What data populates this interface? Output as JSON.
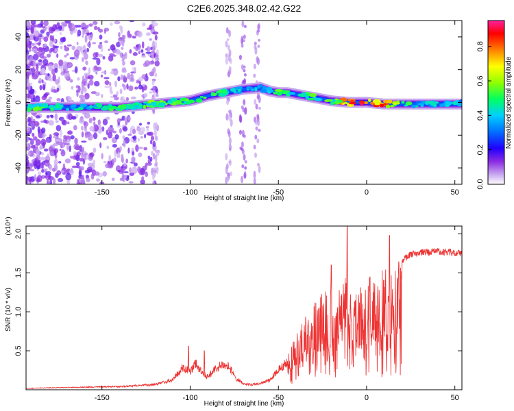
{
  "title": "C2E6.2025.348.02.42.G22",
  "chart_data": [
    {
      "type": "heatmap",
      "xlabel": "Height of straight line (km)",
      "ylabel": "Frequency (Hz)",
      "xlim": [
        -193,
        54
      ],
      "ylim": [
        -50,
        50
      ],
      "xticks": [
        -150,
        -100,
        -50,
        0,
        50
      ],
      "yticks": [
        -40,
        -20,
        0,
        20,
        40
      ],
      "colorbar": {
        "label": "Normalized spectral amplitude",
        "range": [
          0.0,
          0.95
        ],
        "ticks": [
          0.0,
          0.2,
          0.4,
          0.6,
          0.8
        ],
        "colormap": [
          "#ffffff",
          "#c8a8f0",
          "#8a2be2",
          "#0000ff",
          "#00bfff",
          "#00ff00",
          "#ffff00",
          "#ff0000",
          "#ff00ff"
        ]
      },
      "ridge": {
        "x": [
          -193,
          -180,
          -160,
          -140,
          -120,
          -100,
          -90,
          -80,
          -70,
          -60,
          -55,
          -50,
          -45,
          -40,
          -30,
          -20,
          -10,
          0,
          10,
          20,
          30,
          40,
          54
        ],
        "y": [
          -3,
          -3,
          -3,
          -3,
          -1,
          1,
          4,
          6,
          8,
          9,
          7,
          6,
          6,
          5,
          3,
          1,
          0,
          0,
          -1,
          -1,
          -1,
          -1,
          -1
        ],
        "amplitude": [
          0.6,
          0.55,
          0.5,
          0.55,
          0.6,
          0.6,
          0.65,
          0.5,
          0.45,
          0.45,
          0.5,
          0.6,
          0.6,
          0.55,
          0.6,
          0.6,
          0.9,
          0.95,
          0.9,
          0.6,
          0.45,
          0.45,
          0.45
        ]
      }
    },
    {
      "type": "line",
      "xlabel": "Height of straight line (km)",
      "ylabel": "SNR (10 * v/v)",
      "yscale_label": "(x10⁴)",
      "xlim": [
        -193,
        54
      ],
      "ylim": [
        0,
        2.1
      ],
      "xticks": [
        -150,
        -100,
        -50,
        0,
        50
      ],
      "yticks": [
        0.5,
        1.0,
        1.5,
        2.0
      ],
      "series": [
        {
          "color": "#ee3333",
          "envelope_x": [
            -193,
            -180,
            -160,
            -140,
            -120,
            -110,
            -104,
            -100,
            -97,
            -93,
            -90,
            -86,
            -82,
            -78,
            -74,
            -70,
            -65,
            -60,
            -55,
            -50,
            -45,
            -40,
            -35,
            -30,
            -25,
            -20,
            -15,
            -12,
            -10,
            -8,
            -5,
            0,
            5,
            10,
            12,
            15,
            20,
            25,
            30,
            40,
            54
          ],
          "envelope_y": [
            0.02,
            0.03,
            0.04,
            0.05,
            0.08,
            0.15,
            0.35,
            0.28,
            0.42,
            0.25,
            0.2,
            0.32,
            0.38,
            0.36,
            0.18,
            0.1,
            0.08,
            0.1,
            0.15,
            0.3,
            0.45,
            0.7,
            0.95,
            1.1,
            1.25,
            1.3,
            1.35,
            1.5,
            1.2,
            1.3,
            1.35,
            1.45,
            1.5,
            1.55,
            1.6,
            1.6,
            1.7,
            1.78,
            1.8,
            1.82,
            1.8
          ],
          "spikes": [
            {
              "x": -101,
              "y": 0.56
            },
            {
              "x": -92,
              "y": 0.5
            },
            {
              "x": -20,
              "y": 1.6
            },
            {
              "x": -11,
              "y": 2.1
            },
            {
              "x": 13,
              "y": 1.98
            },
            {
              "x": 12,
              "y": 0.5
            }
          ]
        }
      ]
    }
  ]
}
